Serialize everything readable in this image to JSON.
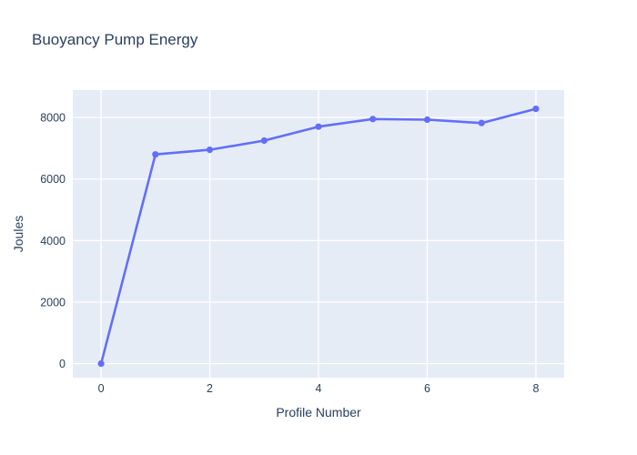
{
  "chart_data": {
    "type": "line",
    "title": "Buoyancy Pump Energy",
    "xlabel": "Profile Number",
    "ylabel": "Joules",
    "x": [
      0,
      1,
      2,
      3,
      4,
      5,
      6,
      7,
      8
    ],
    "values": [
      0,
      6800,
      6950,
      7250,
      7700,
      7950,
      7930,
      7820,
      8280
    ],
    "xtick_labels": [
      "0",
      "2",
      "4",
      "6",
      "8"
    ],
    "xtick_values": [
      0,
      2,
      4,
      6,
      8
    ],
    "ytick_labels": [
      "0",
      "2000",
      "4000",
      "6000",
      "8000"
    ],
    "ytick_values": [
      0,
      2000,
      4000,
      6000,
      8000
    ],
    "xlim": [
      -0.52,
      8.52
    ],
    "ylim": [
      -455,
      8890
    ],
    "grid": true,
    "legend": false,
    "marker": "circle",
    "colors": {
      "line": "#636efa",
      "marker": "#636efa",
      "plot_bg": "#e5ecf6",
      "grid": "#ffffff",
      "text": "#2a3f5f",
      "paper": "#ffffff"
    }
  }
}
